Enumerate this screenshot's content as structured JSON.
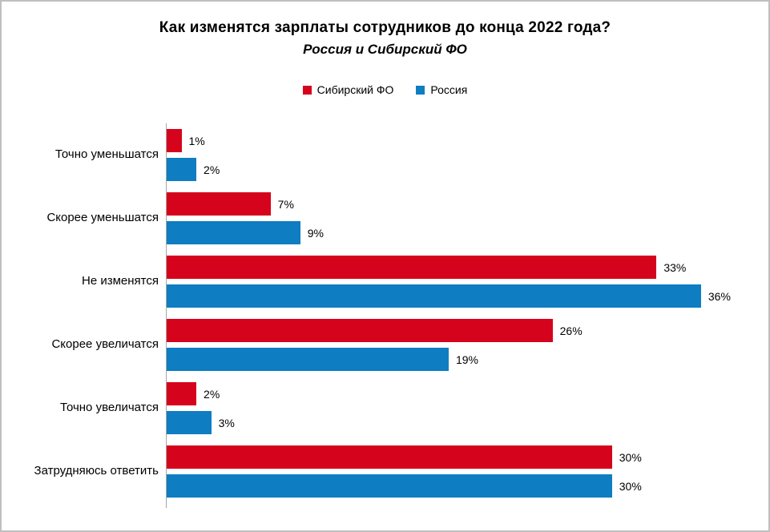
{
  "chart": {
    "title": "Как изменятся зарплаты сотрудников до конца 2022 года?",
    "subtitle": "Россия и Сибирский ФО",
    "legend": [
      {
        "label": "Сибирский ФО",
        "color": "#d6031c"
      },
      {
        "label": "Россия",
        "color": "#0e7dc2"
      }
    ]
  },
  "chart_data": {
    "type": "bar",
    "orientation": "horizontal",
    "title": "Как изменятся зарплаты сотрудников до конца 2022 года?",
    "subtitle": "Россия и Сибирский ФО",
    "categories": [
      "Точно уменьшатся",
      "Скорее уменьшатся",
      "Не изменятся",
      "Скорее увеличатся",
      "Точно увеличатся",
      "Затрудняюсь ответить"
    ],
    "series": [
      {
        "name": "Сибирский ФО",
        "color": "#d6031c",
        "values": [
          1,
          7,
          33,
          26,
          2,
          30
        ]
      },
      {
        "name": "Россия",
        "color": "#0e7dc2",
        "values": [
          2,
          9,
          36,
          19,
          3,
          30
        ]
      }
    ],
    "value_label_format": "{value}%",
    "xlim": [
      0,
      40
    ],
    "grid": false,
    "legend_position": "top",
    "axis_line_color": "#a6a6a6"
  }
}
